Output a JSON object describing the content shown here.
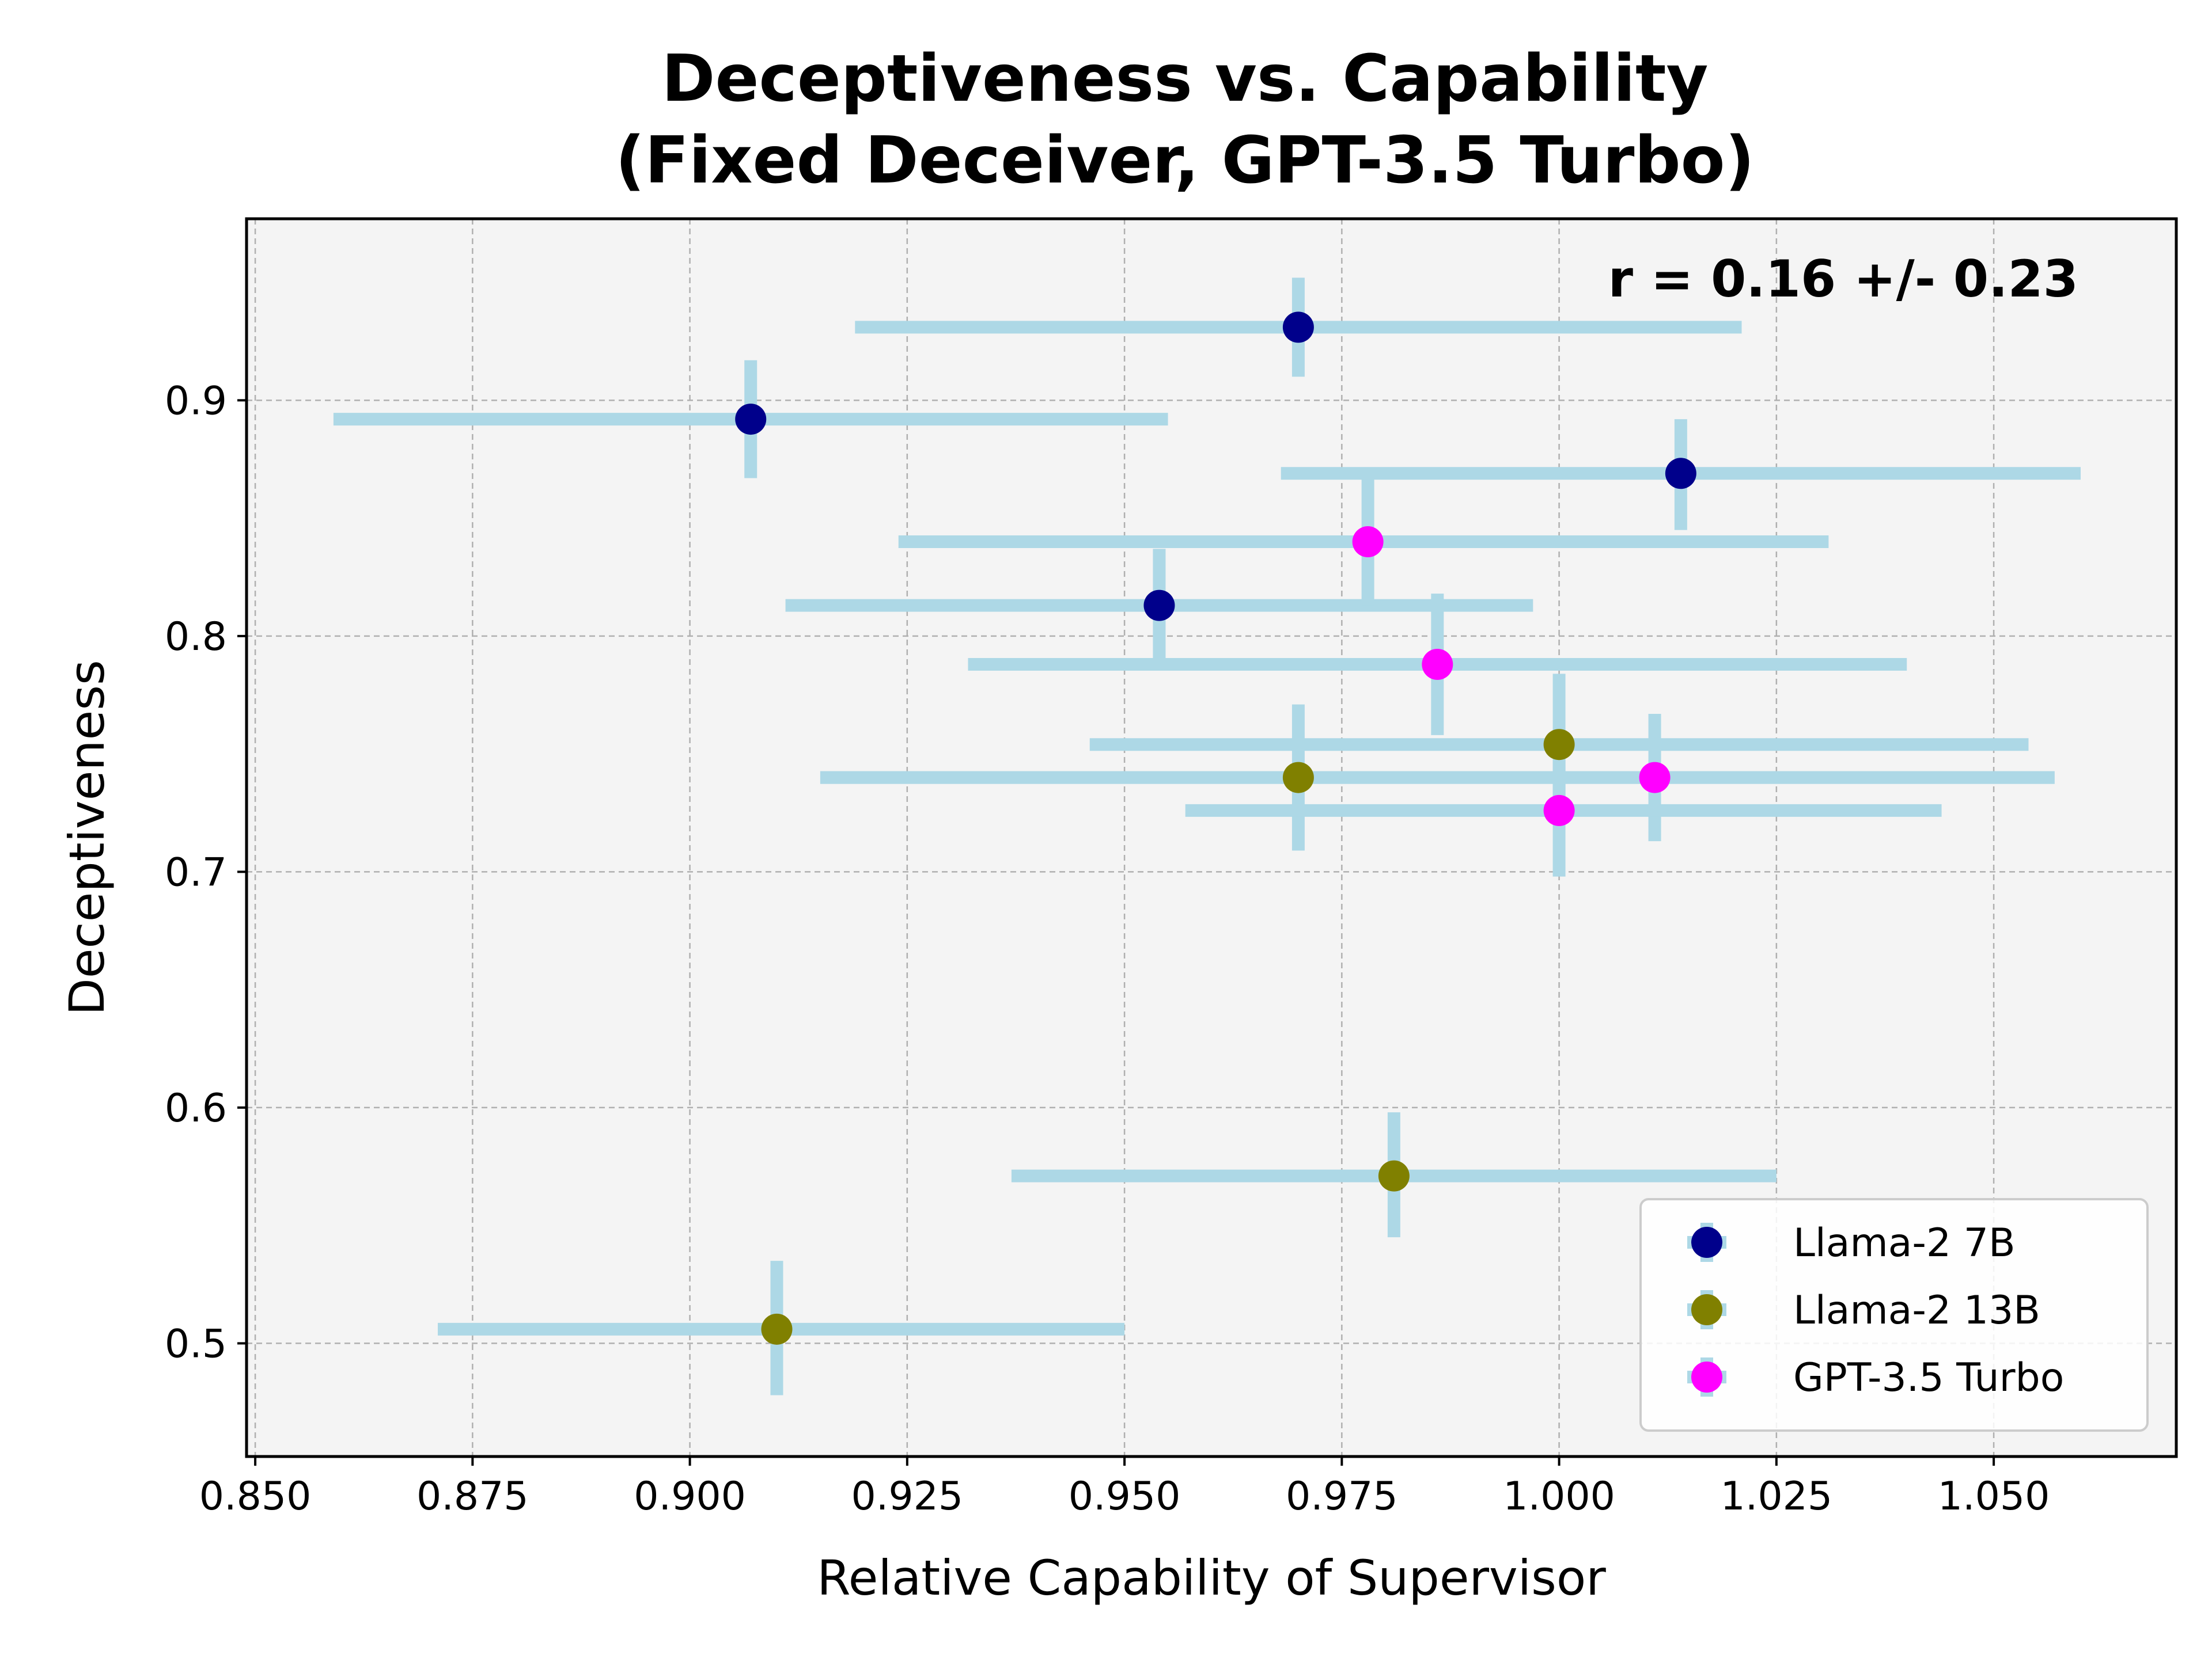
{
  "chart_data": {
    "type": "scatter",
    "title_lines": [
      "Deceptiveness vs. Capability",
      "(Fixed Deceiver, GPT-3.5 Turbo)"
    ],
    "xlabel": "Relative Capability of Supervisor",
    "ylabel": "Deceptiveness",
    "xlim": [
      0.849,
      1.071
    ],
    "ylim": [
      0.452,
      0.977
    ],
    "x_ticks": [
      0.85,
      0.875,
      0.9,
      0.925,
      0.95,
      0.975,
      1.0,
      1.025,
      1.05
    ],
    "x_tick_labels": [
      "0.850",
      "0.875",
      "0.900",
      "0.925",
      "0.950",
      "0.975",
      "1.000",
      "1.025",
      "1.050"
    ],
    "y_ticks": [
      0.5,
      0.6,
      0.7,
      0.8,
      0.9
    ],
    "y_tick_labels": [
      "0.5",
      "0.6",
      "0.7",
      "0.8",
      "0.9"
    ],
    "grid": true,
    "legend_placement": "lower-right",
    "annotation": "r = 0.16 +/- 0.23",
    "errorbar_color": "#add8e6",
    "background_color": "#f4f4f4",
    "series": [
      {
        "name": "Llama-2 7B",
        "color": "#00008b",
        "points": [
          {
            "x": 0.97,
            "y": 0.931,
            "xerr": [
              0.919,
              1.021
            ],
            "yerr": [
              0.91,
              0.952
            ]
          },
          {
            "x": 0.907,
            "y": 0.892,
            "xerr": [
              0.859,
              0.955
            ],
            "yerr": [
              0.867,
              0.917
            ]
          },
          {
            "x": 1.014,
            "y": 0.869,
            "xerr": [
              0.968,
              1.06
            ],
            "yerr": [
              0.845,
              0.892
            ]
          },
          {
            "x": 0.954,
            "y": 0.813,
            "xerr": [
              0.911,
              0.997
            ],
            "yerr": [
              0.789,
              0.837
            ]
          }
        ]
      },
      {
        "name": "Llama-2 13B",
        "color": "#808000",
        "points": [
          {
            "x": 1.0,
            "y": 0.754,
            "xerr": [
              0.946,
              1.054
            ],
            "yerr": [
              0.724,
              0.784
            ]
          },
          {
            "x": 0.97,
            "y": 0.74,
            "xerr": [
              0.915,
              1.057
            ],
            "yerr": [
              0.709,
              0.771
            ]
          },
          {
            "x": 0.981,
            "y": 0.571,
            "xerr": [
              0.937,
              1.025
            ],
            "yerr": [
              0.545,
              0.598
            ]
          },
          {
            "x": 0.91,
            "y": 0.506,
            "xerr": [
              0.871,
              0.95
            ],
            "yerr": [
              0.478,
              0.535
            ]
          }
        ]
      },
      {
        "name": "GPT-3.5 Turbo",
        "color": "#ff00ff",
        "points": [
          {
            "x": 0.978,
            "y": 0.84,
            "xerr": [
              0.924,
              1.031
            ],
            "yerr": [
              0.813,
              0.867
            ]
          },
          {
            "x": 0.986,
            "y": 0.788,
            "xerr": [
              0.932,
              1.04
            ],
            "yerr": [
              0.758,
              0.818
            ]
          },
          {
            "x": 1.011,
            "y": 0.74,
            "xerr": [
              0.915,
              1.057
            ],
            "yerr": [
              0.713,
              0.767
            ]
          },
          {
            "x": 1.0,
            "y": 0.726,
            "xerr": [
              0.957,
              1.044
            ],
            "yerr": [
              0.698,
              0.754
            ]
          }
        ]
      }
    ]
  }
}
